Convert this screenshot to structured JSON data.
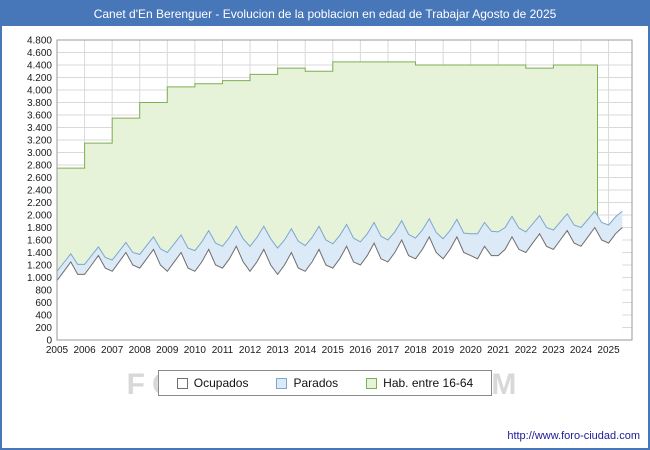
{
  "title": "Canet d'En Berenguer - Evolucion de la poblacion en edad de Trabajar Agosto de 2025",
  "watermark": "FORO-CIUDAD.COM",
  "footer": {
    "url": "http://www.foro-ciudad.com"
  },
  "colors": {
    "title_bar": "#4776b9",
    "frame_border": "#4776b9",
    "plot_bg": "#ffffff",
    "grid": "#d9d9d9",
    "plot_border": "#9a9a9a",
    "hab_fill": "#e6f3d8",
    "hab_line": "#7fae55",
    "parados_fill": "#dce9f6",
    "parados_line": "#7ba7d0",
    "ocupados_fill": "#ffffff",
    "ocupados_line": "#6e6e6e",
    "tick_text": "#1a1a1a",
    "url_text": "#1a1a99",
    "watermark_text": "#d8d8d8"
  },
  "legend": [
    {
      "label": "Ocupados",
      "fill": "#ffffff",
      "border": "#6e6e6e"
    },
    {
      "label": "Parados",
      "fill": "#dce9f6",
      "border": "#7ba7d0"
    },
    {
      "label": "Hab. entre 16-64",
      "fill": "#e6f3d8",
      "border": "#7fae55"
    }
  ],
  "chart_data": {
    "type": "area",
    "title": "Canet d'En Berenguer - Evolucion de la poblacion en edad de Trabajar Agosto de 2025",
    "x_range": [
      2005,
      2025.85
    ],
    "ylim": [
      0,
      4800
    ],
    "ytick_step": 200,
    "x_labels": [
      "2005",
      "2006",
      "2007",
      "2008",
      "2009",
      "2010",
      "2011",
      "2012",
      "2013",
      "2014",
      "2015",
      "2016",
      "2017",
      "2018",
      "2019",
      "2020",
      "2021",
      "2022",
      "2023",
      "2024",
      "2025"
    ],
    "legend_position": "bottom",
    "grid": true,
    "series": [
      {
        "name": "Hab. entre 16-64",
        "style": "step",
        "x_start": 2005,
        "x_step": 1,
        "x_end": 2024.6,
        "values": [
          2750,
          3150,
          3550,
          3800,
          4050,
          4100,
          4150,
          4250,
          4350,
          4300,
          4450,
          4450,
          4450,
          4400,
          4400,
          4400,
          4400,
          4350,
          4400,
          4400
        ]
      },
      {
        "name": "Ocupados",
        "style": "line",
        "x_start": 2005,
        "x_step": 0.25,
        "values": [
          950,
          1100,
          1250,
          1050,
          1050,
          1200,
          1350,
          1150,
          1100,
          1250,
          1400,
          1200,
          1150,
          1300,
          1450,
          1200,
          1100,
          1250,
          1400,
          1150,
          1100,
          1250,
          1450,
          1200,
          1150,
          1300,
          1500,
          1250,
          1100,
          1250,
          1450,
          1200,
          1050,
          1200,
          1400,
          1150,
          1100,
          1250,
          1450,
          1200,
          1150,
          1300,
          1500,
          1250,
          1200,
          1350,
          1550,
          1300,
          1250,
          1400,
          1600,
          1350,
          1300,
          1450,
          1650,
          1400,
          1300,
          1450,
          1650,
          1400,
          1350,
          1300,
          1500,
          1350,
          1350,
          1450,
          1650,
          1450,
          1400,
          1550,
          1700,
          1500,
          1450,
          1600,
          1750,
          1550,
          1500,
          1650,
          1800,
          1600,
          1550,
          1700,
          1800
        ]
      },
      {
        "name": "Parados",
        "style": "line",
        "stacked_on": "Ocupados",
        "x_start": 2005,
        "x_step": 0.25,
        "values": [
          150,
          140,
          130,
          160,
          160,
          150,
          140,
          170,
          180,
          170,
          160,
          200,
          220,
          210,
          200,
          260,
          300,
          290,
          280,
          320,
          330,
          320,
          300,
          350,
          350,
          340,
          320,
          370,
          400,
          390,
          370,
          420,
          420,
          400,
          380,
          430,
          410,
          390,
          370,
          400,
          390,
          370,
          350,
          380,
          370,
          350,
          330,
          360,
          350,
          330,
          310,
          340,
          330,
          310,
          290,
          320,
          320,
          300,
          280,
          310,
          350,
          400,
          380,
          390,
          380,
          350,
          330,
          340,
          330,
          310,
          290,
          300,
          310,
          290,
          270,
          290,
          300,
          280,
          260,
          280,
          290,
          270,
          260
        ]
      }
    ]
  }
}
